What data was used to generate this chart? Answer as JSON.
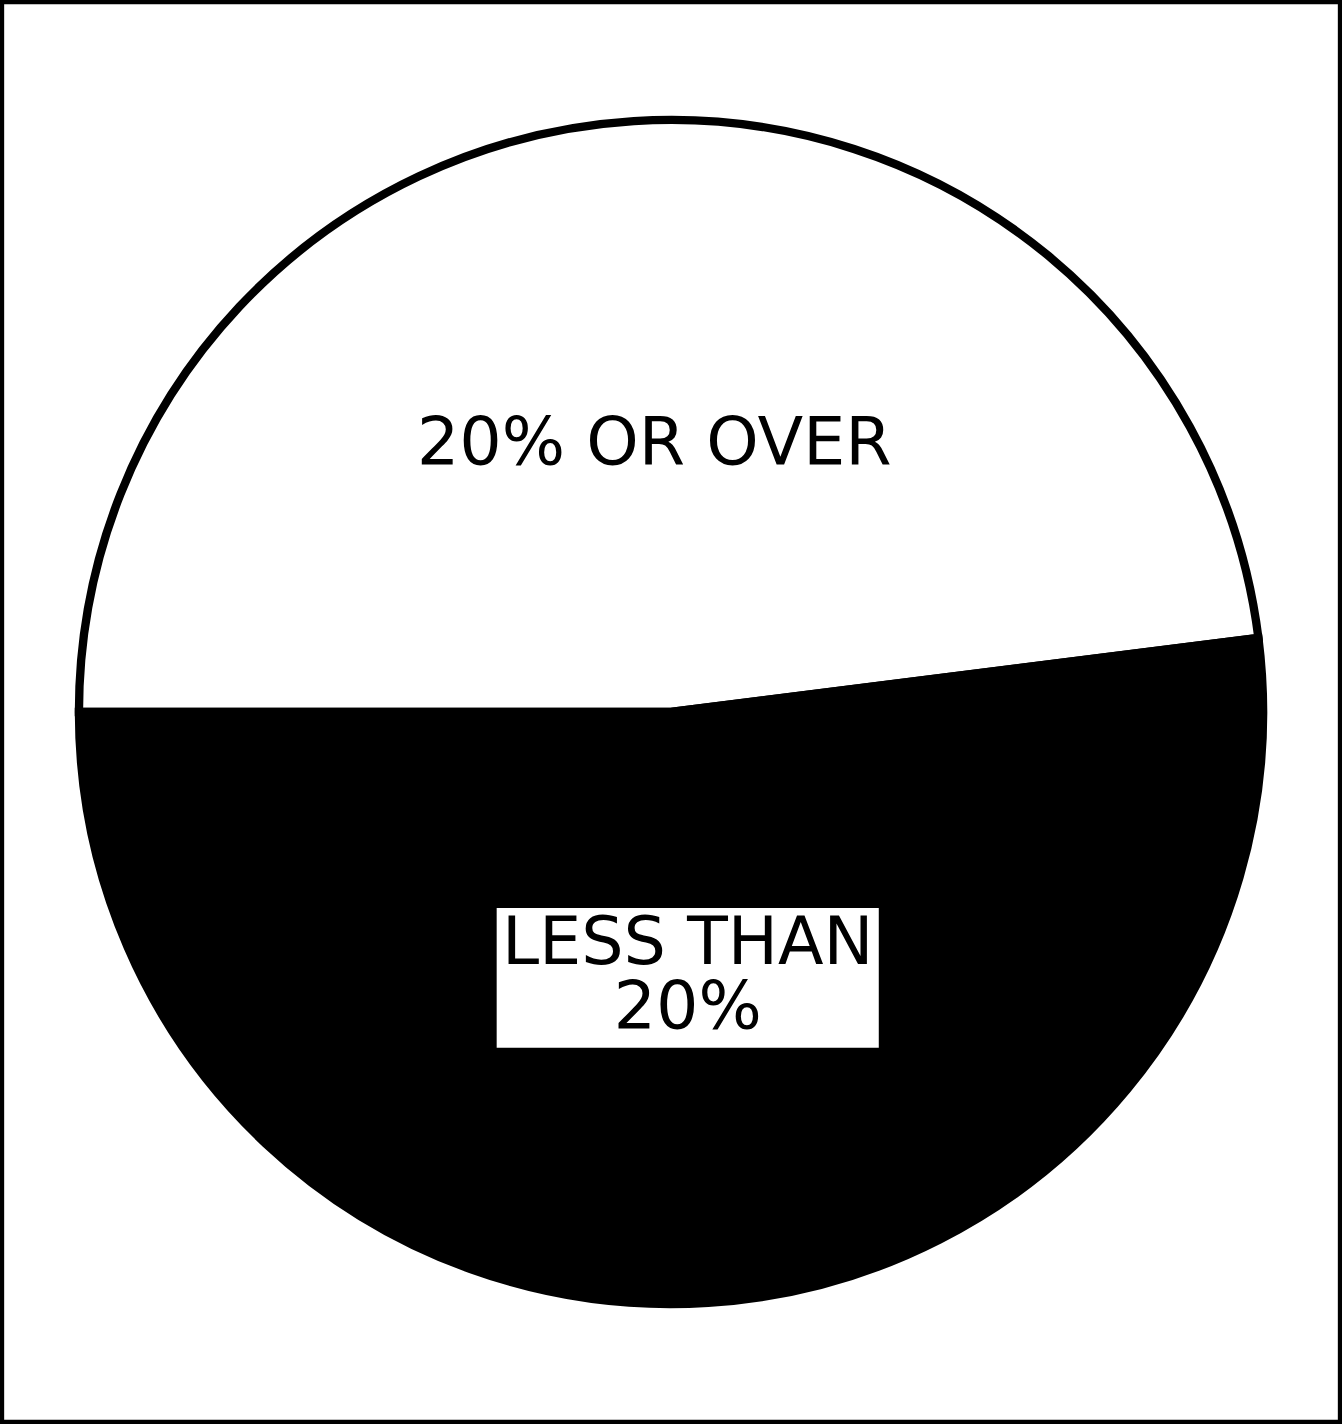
{
  "chart_data": {
    "type": "pie",
    "categories": [
      "20% OR OVER",
      "LESS THAN\n20%"
    ],
    "values": [
      48,
      52
    ],
    "colors": [
      "#ffffff",
      "#000000"
    ],
    "legend": false
  }
}
